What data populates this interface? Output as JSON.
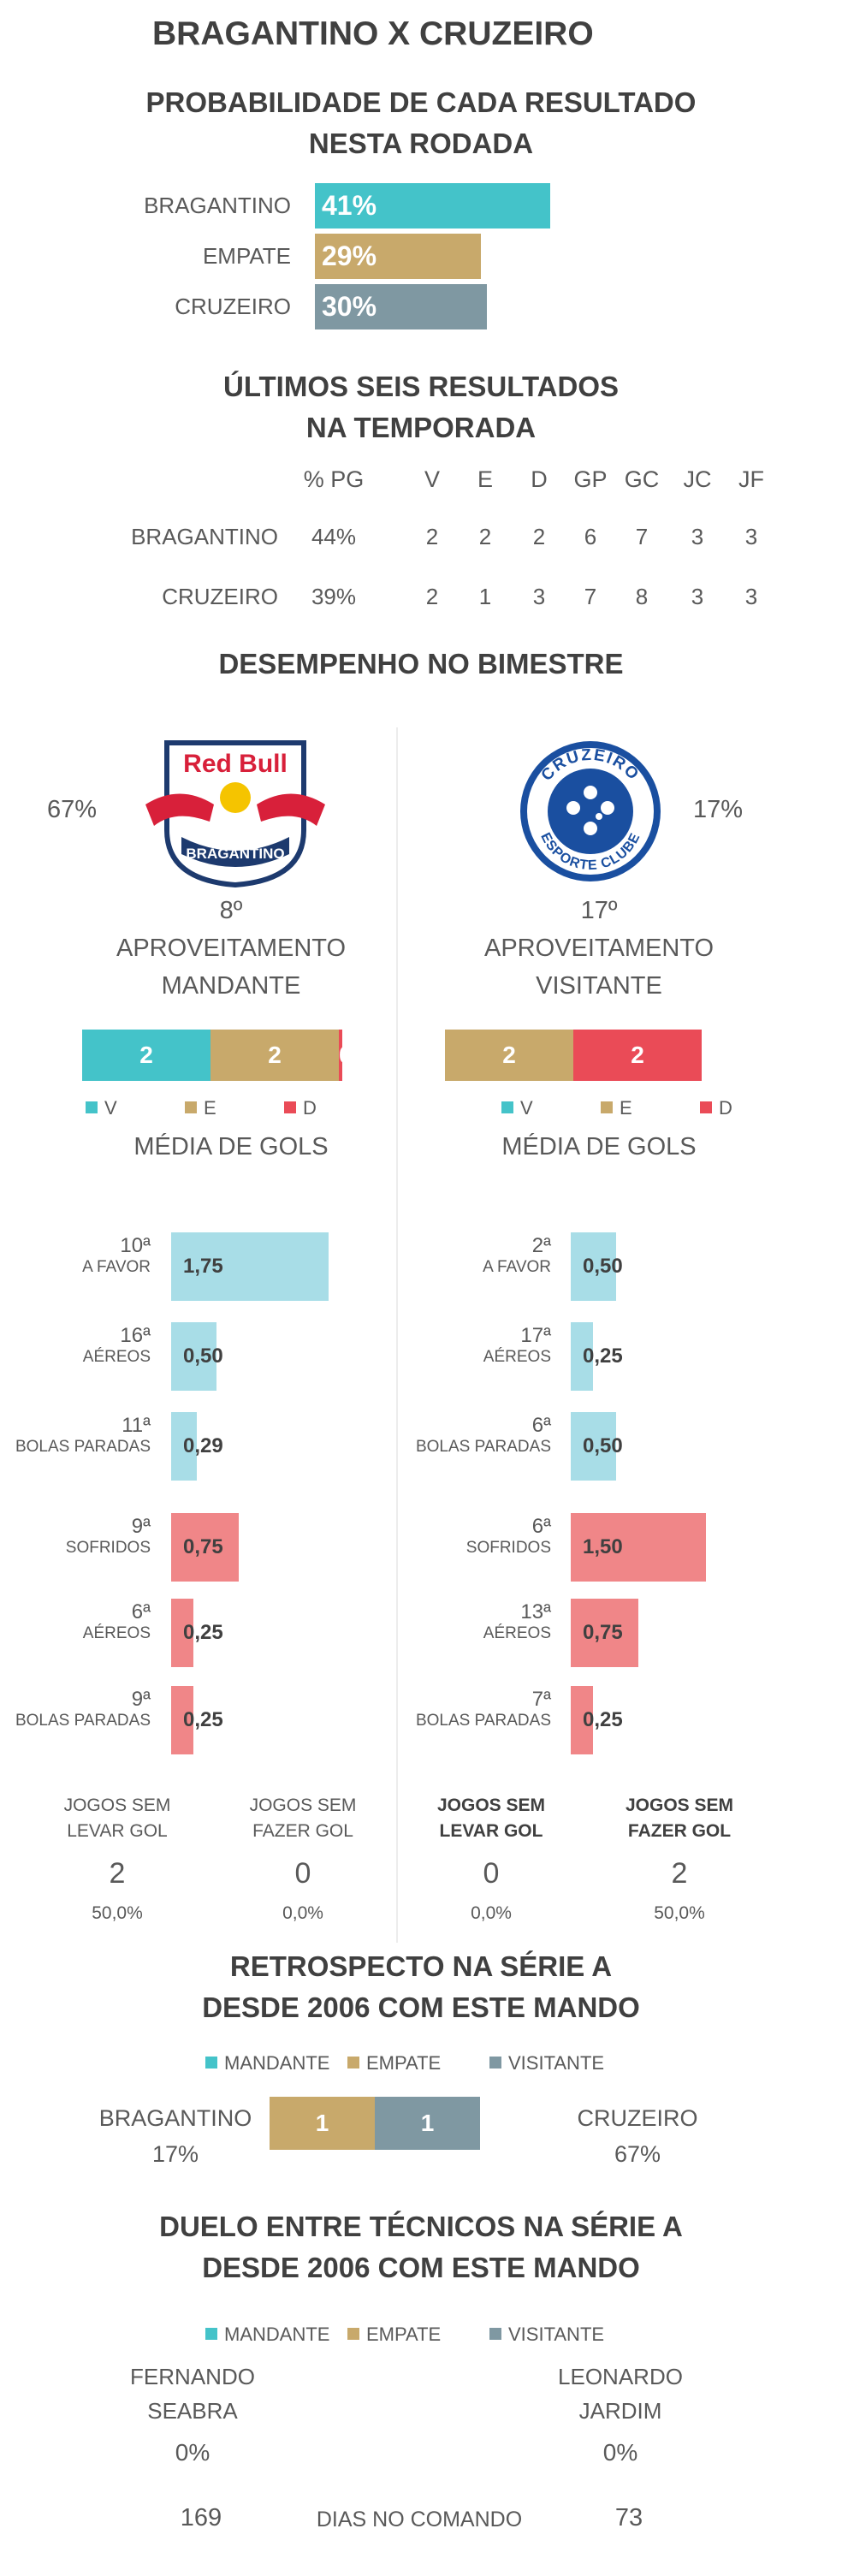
{
  "title": "BRAGANTINO X CRUZEIRO",
  "colors": {
    "teal": "#44c3c9",
    "gold": "#c8a96b",
    "grey": "#7f98a2",
    "red": "#ea4b57",
    "lightblue": "#a8dde7",
    "lightred": "#f08688"
  },
  "probabilidade": {
    "title_line1": "PROBABILIDADE DE CADA RESULTADO",
    "title_line2": "NESTA RODADA",
    "chart_data": {
      "type": "bar",
      "categories": [
        "BRAGANTINO",
        "EMPATE",
        "CRUZEIRO"
      ],
      "values": [
        41,
        29,
        30
      ],
      "labels": [
        "41%",
        "29%",
        "30%"
      ],
      "unit": "%"
    }
  },
  "ultimos": {
    "title_line1": "ÚLTIMOS SEIS RESULTADOS",
    "title_line2": "NA TEMPORADA",
    "headers": [
      "% PG",
      "V",
      "E",
      "D",
      "GP",
      "GC",
      "JC",
      "JF"
    ],
    "rows": [
      {
        "team": "BRAGANTINO",
        "values": [
          "44%",
          "2",
          "2",
          "2",
          "6",
          "7",
          "3",
          "3"
        ]
      },
      {
        "team": "CRUZEIRO",
        "values": [
          "39%",
          "2",
          "1",
          "3",
          "7",
          "8",
          "3",
          "3"
        ]
      }
    ]
  },
  "desempenho": {
    "title": "DESEMPENHO NO BIMESTRE",
    "logo_home": {
      "text_top": "Red Bull",
      "text_bottom": "BRAGANTINO"
    },
    "logo_away": {
      "text_top": "CRUZEIRO",
      "text_bottom": "ESPORTE CLUBE"
    },
    "home": {
      "pct": "67%",
      "rank": "8º",
      "label_line1": "APROVEITAMENTO",
      "label_line2": "MANDANTE",
      "stack": [
        {
          "name": "V",
          "value": 2,
          "label": "2"
        },
        {
          "name": "E",
          "value": 2,
          "label": "2"
        },
        {
          "name": "D",
          "value": 0,
          "label": "0"
        }
      ],
      "legend": [
        "V",
        "E",
        "D"
      ],
      "media_title": "MÉDIA DE GOLS",
      "stats": [
        {
          "rank": "10ª",
          "label": "A FAVOR",
          "value": 1.75,
          "text": "1,75",
          "kind": "pro"
        },
        {
          "rank": "16ª",
          "label": "AÉREOS",
          "value": 0.5,
          "text": "0,50",
          "kind": "pro"
        },
        {
          "rank": "11ª",
          "label": "BOLAS PARADAS",
          "value": 0.29,
          "text": "0,29",
          "kind": "pro"
        },
        {
          "rank": "9ª",
          "label": "SOFRIDOS",
          "value": 0.75,
          "text": "0,75",
          "kind": "contra"
        },
        {
          "rank": "6ª",
          "label": "AÉREOS",
          "value": 0.25,
          "text": "0,25",
          "kind": "contra"
        },
        {
          "rank": "9ª",
          "label": "BOLAS PARADAS",
          "value": 0.25,
          "text": "0,25",
          "kind": "contra"
        }
      ],
      "jogos": [
        {
          "line1": "JOGOS SEM",
          "line2": "LEVAR GOL",
          "value": "2",
          "pct": "50,0%"
        },
        {
          "line1": "JOGOS SEM",
          "line2": "FAZER GOL",
          "value": "0",
          "pct": "0,0%"
        }
      ]
    },
    "away": {
      "pct": "17%",
      "rank": "17º",
      "label_line1": "APROVEITAMENTO",
      "label_line2": "VISITANTE",
      "stack": [
        {
          "name": "V",
          "value": 0,
          "label": "0"
        },
        {
          "name": "E",
          "value": 2,
          "label": "2"
        },
        {
          "name": "D",
          "value": 2,
          "label": "2"
        }
      ],
      "legend": [
        "V",
        "E",
        "D"
      ],
      "media_title": "MÉDIA DE GOLS",
      "stats": [
        {
          "rank": "2ª",
          "label": "A FAVOR",
          "value": 0.5,
          "text": "0,50",
          "kind": "pro"
        },
        {
          "rank": "17ª",
          "label": "AÉREOS",
          "value": 0.25,
          "text": "0,25",
          "kind": "pro"
        },
        {
          "rank": "6ª",
          "label": "BOLAS PARADAS",
          "value": 0.5,
          "text": "0,50",
          "kind": "pro"
        },
        {
          "rank": "6ª",
          "label": "SOFRIDOS",
          "value": 1.5,
          "text": "1,50",
          "kind": "contra"
        },
        {
          "rank": "13ª",
          "label": "AÉREOS",
          "value": 0.75,
          "text": "0,75",
          "kind": "contra"
        },
        {
          "rank": "7ª",
          "label": "BOLAS PARADAS",
          "value": 0.25,
          "text": "0,25",
          "kind": "contra"
        }
      ],
      "jogos": [
        {
          "line1": "JOGOS SEM",
          "line2": "LEVAR GOL",
          "value": "0",
          "pct": "0,0%"
        },
        {
          "line1": "JOGOS SEM",
          "line2": "FAZER GOL",
          "value": "2",
          "pct": "50,0%"
        }
      ]
    }
  },
  "retrospecto": {
    "title_line1": "RETROSPECTO NA SÉRIE A",
    "title_line2": "DESDE 2006 COM ESTE MANDO",
    "legend": [
      "MANDANTE",
      "EMPATE",
      "VISITANTE"
    ],
    "home_team": "BRAGANTINO",
    "home_pct": "17%",
    "away_team": "CRUZEIRO",
    "away_pct": "67%",
    "stack": [
      {
        "name": "MANDANTE",
        "value": 0,
        "label": "0"
      },
      {
        "name": "EMPATE",
        "value": 1,
        "label": "1"
      },
      {
        "name": "VISITANTE",
        "value": 1,
        "label": "1"
      }
    ]
  },
  "duelo": {
    "title_line1": "DUELO ENTRE TÉCNICOS NA SÉRIE A",
    "title_line2": "DESDE 2006 COM ESTE MANDO",
    "legend": [
      "MANDANTE",
      "EMPATE",
      "VISITANTE"
    ],
    "home_coach_line1": "FERNANDO",
    "home_coach_line2": "SEABRA",
    "home_pct": "0%",
    "away_coach_line1": "LEONARDO",
    "away_coach_line2": "JARDIM",
    "away_pct": "0%",
    "dias_label": "DIAS NO COMANDO",
    "home_dias": "169",
    "away_dias": "73"
  }
}
